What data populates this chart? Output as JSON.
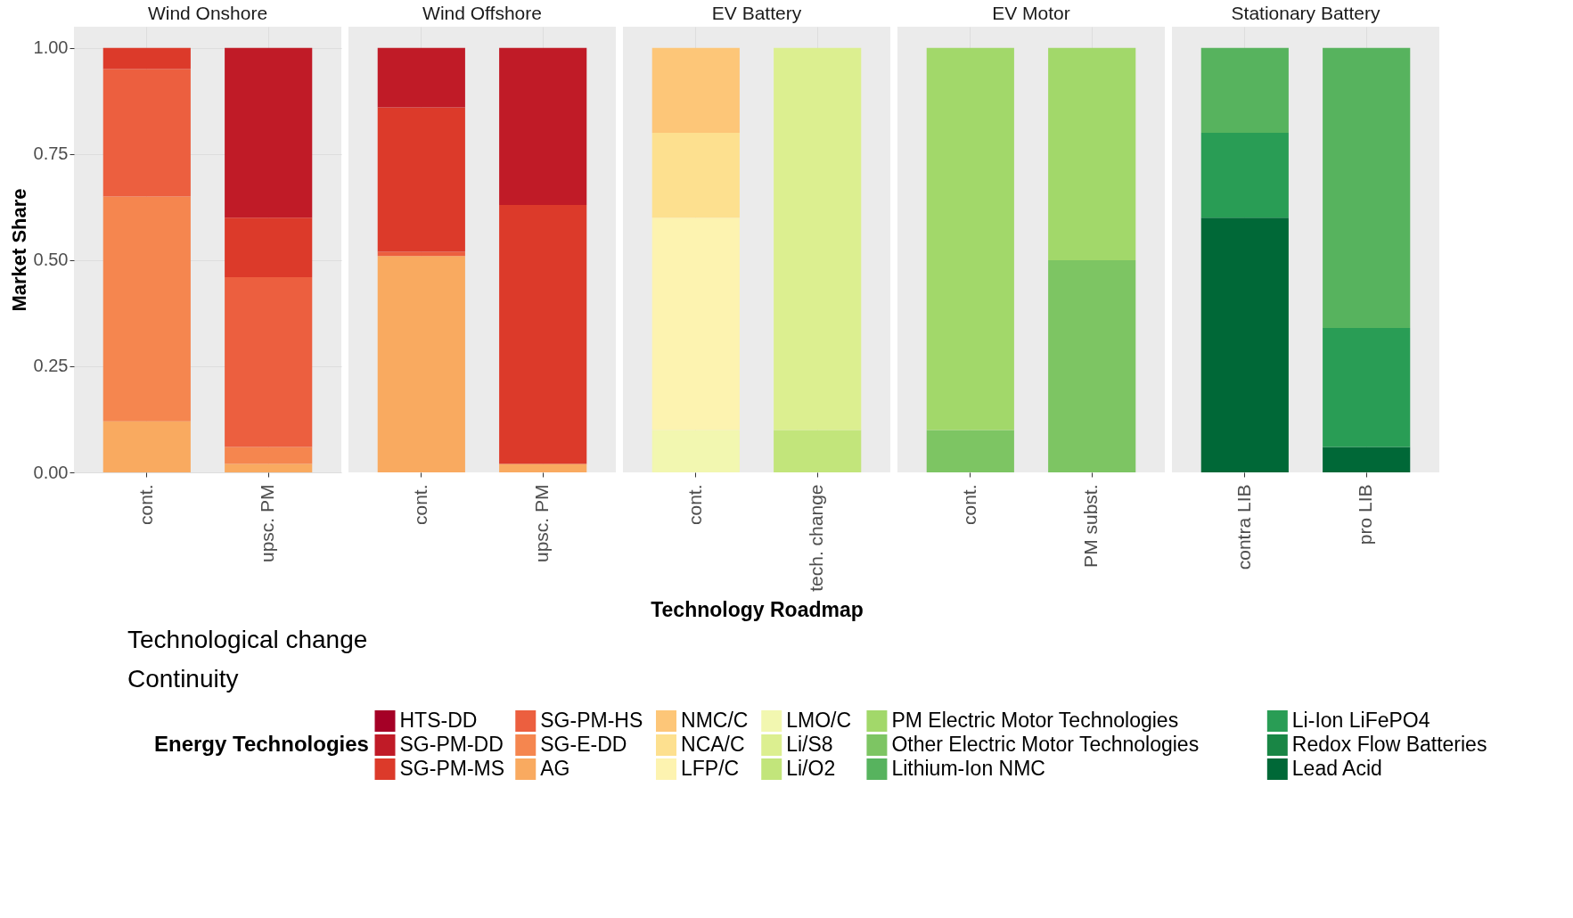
{
  "chart_data": [
    {
      "type": "bar",
      "stacked": true,
      "title": "Wind Onshore",
      "ylabel": "Market Share",
      "categories": [
        "cont.",
        "upsc. PM"
      ],
      "ylim": [
        0,
        1.05
      ],
      "yticks": [
        {
          "value": 0,
          "label": "0.00"
        },
        {
          "value": 0.25,
          "label": "0.25"
        },
        {
          "value": 0.5,
          "label": "0.50"
        },
        {
          "value": 0.75,
          "label": "0.75"
        },
        {
          "value": 1,
          "label": "1.00"
        }
      ],
      "grid": true,
      "legend": "bottom",
      "legend_title": "Energy Technologies",
      "annotations": [
        "Technological change",
        "Continuity"
      ],
      "series": [
        {
          "name": "AG",
          "color": "#f9aa60",
          "values": [
            0.12,
            0.02
          ]
        },
        {
          "name": "SG-E-DD",
          "color": "#f5864f",
          "values": [
            0.53,
            0.04
          ]
        },
        {
          "name": "SG-PM-HS",
          "color": "#ec5f3f",
          "values": [
            0.3,
            0.4
          ]
        },
        {
          "name": "SG-PM-MS",
          "color": "#dc3a2a",
          "values": [
            0.05,
            0.14
          ]
        },
        {
          "name": "SG-PM-DD",
          "color": "#c01b27",
          "values": [
            null,
            0.4
          ]
        },
        {
          "name": "HTS-DD",
          "color": "#a50026",
          "values": [
            null,
            null
          ]
        }
      ]
    },
    {
      "type": "bar",
      "stacked": true,
      "title": "Wind Offshore",
      "categories": [
        "cont.",
        "upsc. PM"
      ],
      "ylim": [
        0,
        1.05
      ],
      "tick_labels": "x",
      "grid": true,
      "legend": "bottom",
      "series": [
        {
          "name": "AG",
          "color": "#f9aa60",
          "values": [
            0.51,
            0.02
          ]
        },
        {
          "name": "SG-PM-HS",
          "color": "#ec5f3f",
          "values": [
            0.01,
            null
          ]
        },
        {
          "name": "SG-PM-MS",
          "color": "#dc3a2a",
          "values": [
            0.34,
            0.61
          ]
        },
        {
          "name": "SG-PM-DD",
          "color": "#c01b27",
          "values": [
            0.14,
            0.37
          ]
        }
      ]
    },
    {
      "type": "bar",
      "stacked": true,
      "title": "EV Battery",
      "xlabel": "Technology Roadmap",
      "categories": [
        "cont.",
        "tech. change"
      ],
      "ylim": [
        0,
        1.05
      ],
      "tick_labels": "x",
      "grid": true,
      "legend": "bottom",
      "series": [
        {
          "name": "Li/O2",
          "color": "#c2e57b",
          "values": [
            null,
            0.1
          ]
        },
        {
          "name": "Li/S8",
          "color": "#dcef90",
          "values": [
            null,
            0.9
          ]
        },
        {
          "name": "LMO/C",
          "color": "#f2f7b0",
          "values": [
            0.1,
            null
          ]
        },
        {
          "name": "LFP/C",
          "color": "#fdf3b0",
          "values": [
            0.5,
            null
          ]
        },
        {
          "name": "NCA/C",
          "color": "#fde08f",
          "values": [
            0.2,
            null
          ]
        },
        {
          "name": "NMC/C",
          "color": "#fdc678",
          "values": [
            0.2,
            null
          ]
        }
      ]
    },
    {
      "type": "bar",
      "stacked": true,
      "title": "EV Motor",
      "categories": [
        "cont.",
        "PM subst."
      ],
      "ylim": [
        0,
        1.05
      ],
      "tick_labels": "x",
      "grid": true,
      "legend": "bottom",
      "series": [
        {
          "name": "Other Electric Motor Technologies",
          "color": "#7dc563",
          "values": [
            0.1,
            0.5
          ]
        },
        {
          "name": "PM Electric Motor Technologies",
          "color": "#a2d86a",
          "values": [
            0.9,
            0.5
          ]
        }
      ]
    },
    {
      "type": "bar",
      "stacked": true,
      "title": "Stationary Battery",
      "categories": [
        "contra LIB",
        "pro LIB"
      ],
      "ylim": [
        0,
        1.05
      ],
      "tick_labels": "x",
      "grid": true,
      "legend": "bottom",
      "series": [
        {
          "name": "Lead Acid",
          "color": "#006837",
          "values": [
            0.6,
            0.06
          ]
        },
        {
          "name": "Redox Flow Batteries",
          "color": "#198645",
          "values": [
            null,
            null
          ]
        },
        {
          "name": "Li-Ion LiFePO4",
          "color": "#299d55",
          "values": [
            0.2,
            0.28
          ]
        },
        {
          "name": "Lithium-Ion NMC",
          "color": "#57b35e",
          "values": [
            0.2,
            0.66
          ]
        }
      ]
    }
  ]
}
